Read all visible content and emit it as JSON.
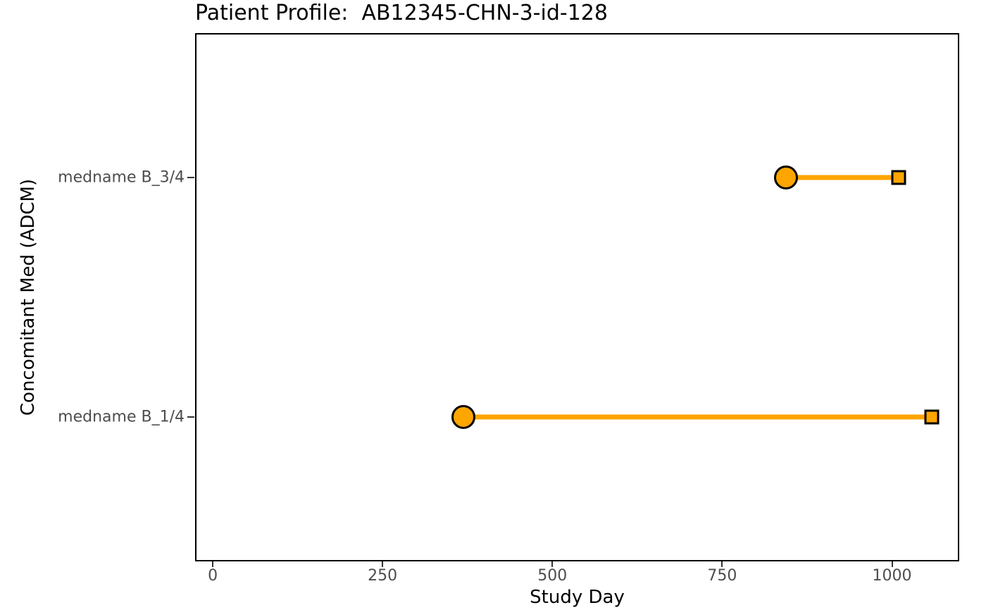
{
  "chart_data": {
    "type": "segment",
    "title": "Patient Profile:  AB12345-CHN-3-id-128",
    "xlabel": "Study Day",
    "ylabel": "Concomitant Med (ADCM)",
    "x_ticks": [
      0,
      250,
      500,
      750,
      1000
    ],
    "xlim": [
      -26,
      1099
    ],
    "ylim": [
      0.4,
      2.6
    ],
    "grid": false,
    "legend": "none",
    "categories": [
      {
        "label": "medname B_1/4",
        "y": 1
      },
      {
        "label": "medname B_3/4",
        "y": 2
      }
    ],
    "series": [
      {
        "name": "medname B_3/4",
        "y": 2,
        "start_day": 845,
        "end_day": 1012,
        "start_marker": "circle",
        "end_marker": "square"
      },
      {
        "name": "medname B_1/4",
        "y": 1,
        "start_day": 368,
        "end_day": 1061,
        "start_marker": "circle",
        "end_marker": "square"
      }
    ],
    "colors": {
      "segment": "#FFA500",
      "marker_fill": "#FFA500",
      "marker_stroke": "#000000",
      "axis_text": "#4D4D4D",
      "axis_title": "#000000",
      "tick": "#333333",
      "panel_border": "#000000",
      "background": "#FFFFFF"
    }
  }
}
